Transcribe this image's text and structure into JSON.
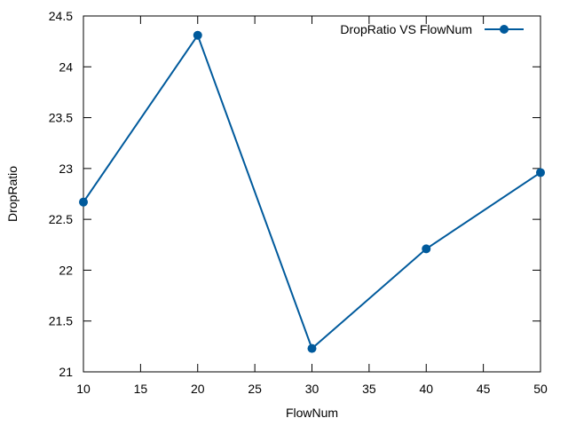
{
  "chart_data": {
    "type": "line",
    "title": "",
    "xlabel": "FlowNum",
    "ylabel": "DropRatio",
    "xlim": [
      10,
      50
    ],
    "ylim": [
      21,
      24.5
    ],
    "x_ticks": [
      "10",
      "15",
      "20",
      "25",
      "30",
      "35",
      "40",
      "45",
      "50"
    ],
    "y_ticks": [
      "21",
      "21.5",
      "22",
      "22.5",
      "23",
      "23.5",
      "24",
      "24.5"
    ],
    "grid": false,
    "legend_position": "top-right",
    "series": [
      {
        "name": "DropRatio VS FlowNum",
        "color": "#005a9c",
        "marker": "circle",
        "x": [
          10,
          20,
          30,
          40,
          50
        ],
        "y": [
          22.67,
          24.31,
          21.23,
          22.21,
          22.96
        ]
      }
    ]
  }
}
